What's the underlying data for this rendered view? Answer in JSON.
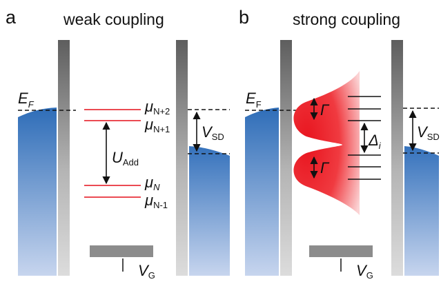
{
  "panels": [
    {
      "letter": "a",
      "title": "weak coupling",
      "fermi": {
        "sym": "E",
        "sub": "F"
      },
      "levels": [
        {
          "sym": "μ",
          "sub": "N+2"
        },
        {
          "sym": "μ",
          "sub": "N+1"
        },
        {
          "sym": "μ",
          "sub": "N"
        },
        {
          "sym": "μ",
          "sub": "N-1"
        }
      ],
      "addition": {
        "sym": "U",
        "sub": "Add"
      },
      "bias": {
        "sym": "V",
        "sub": "SD"
      },
      "gate": {
        "sym": "V",
        "sub": "G"
      }
    },
    {
      "letter": "b",
      "title": "strong coupling",
      "fermi": {
        "sym": "E",
        "sub": "F"
      },
      "gamma_upper": "Γ",
      "gamma_lower": "Γ",
      "spacing": {
        "sym": "Δ",
        "sub": "i"
      },
      "bias": {
        "sym": "V",
        "sub": "SD"
      },
      "gate": {
        "sym": "V",
        "sub": "G"
      }
    }
  ],
  "colors": {
    "lead_blue_top": "#2e6db8",
    "lead_blue_bottom": "#c7d5ee",
    "barrier_dark": "#666666",
    "barrier_light": "#d6d6d6",
    "level_red": "#e8313a",
    "broadening_red": "#ee1c25",
    "gate_gray": "#8c8c8c"
  }
}
